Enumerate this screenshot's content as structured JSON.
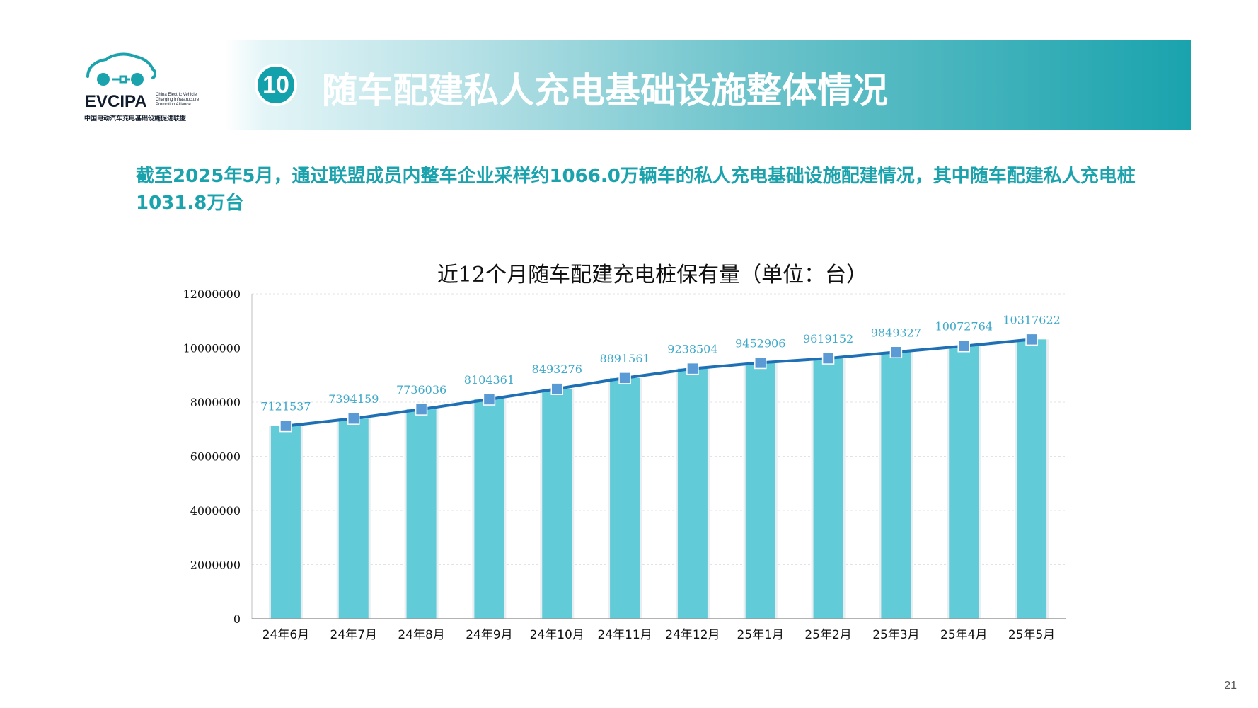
{
  "header": {
    "logo_text": "EVCIPA",
    "logo_subtitle_lines": [
      "China Electric Vehicle",
      "Charging Infrastructure",
      "Promotion Alliance"
    ],
    "logo_chinese": "中国电动汽车充电基础设施促进联盟",
    "section_number": "10",
    "section_title": "随车配建私人充电基础设施整体情况"
  },
  "summary_text": "截至2025年5月，通过联盟成员内整车企业采样约1066.0万辆车的私人充电基础设施配建情况，其中随车配建私人充电桩1031.8万台",
  "page_number": "21",
  "colors": {
    "accent": "#1aa3ad",
    "bar": "#62cbd8",
    "line": "#1f6fb5",
    "marker": "#5b9bd5",
    "data_label": "#3fa9c9"
  },
  "chart_data": {
    "type": "bar",
    "title": "近12个月随车配建充电桩保有量（单位：台）",
    "categories": [
      "24年6月",
      "24年7月",
      "24年8月",
      "24年9月",
      "24年10月",
      "24年11月",
      "24年12月",
      "25年1月",
      "25年2月",
      "25年3月",
      "25年4月",
      "25年5月"
    ],
    "values": [
      7121537,
      7394159,
      7736036,
      8104361,
      8493276,
      8891561,
      9238504,
      9452906,
      9619152,
      9849327,
      10072764,
      10317622
    ],
    "overlay_line": true,
    "ylim": [
      0,
      12000000
    ],
    "yticks": [
      0,
      2000000,
      4000000,
      6000000,
      8000000,
      10000000,
      12000000
    ],
    "ytick_labels": [
      "0",
      "2000000",
      "4000000",
      "6000000",
      "8000000",
      "10000000",
      "12000000"
    ],
    "grid": true,
    "xlabel": "",
    "ylabel": ""
  }
}
